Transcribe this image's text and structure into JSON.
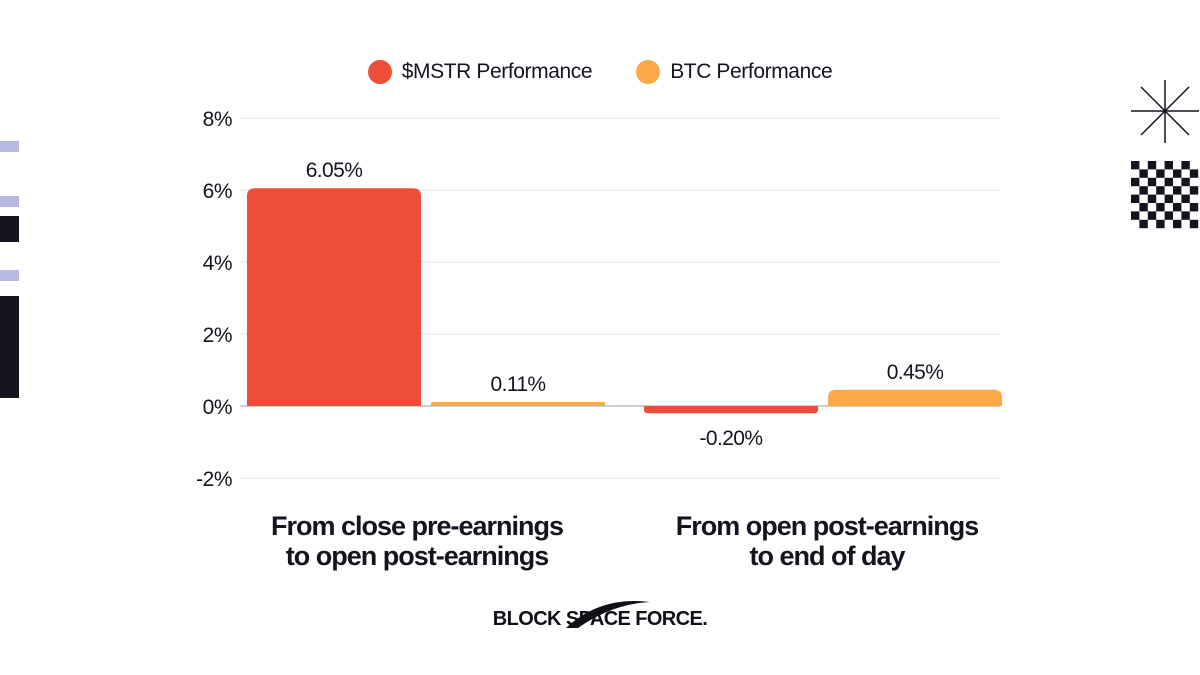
{
  "chart_data": {
    "type": "bar",
    "categories": [
      [
        "From close pre-earnings",
        "to open post-earnings"
      ],
      [
        "From open post-earnings",
        "to end of day"
      ]
    ],
    "series": [
      {
        "name": "$MSTR Performance",
        "color": "#ee4d3a",
        "values": [
          6.05,
          -0.2
        ],
        "labels": [
          "6.05%",
          "-0.20%"
        ]
      },
      {
        "name": "BTC Performance",
        "color": "#fbaa46",
        "values": [
          0.11,
          0.45
        ],
        "labels": [
          "0.11%",
          "0.45%"
        ]
      }
    ],
    "yticks": [
      8,
      6,
      4,
      2,
      0,
      -2
    ],
    "ytick_labels": [
      "8%",
      "6%",
      "4%",
      "2%",
      "0%",
      "-2%"
    ],
    "ylim": [
      -2,
      8
    ],
    "grid": true,
    "legend": "top-center"
  },
  "brand": {
    "name": "BLOCK SPACE FORCE."
  },
  "decor": {
    "accent_light": "#b8b9e3",
    "accent_dark": "#16131f"
  }
}
